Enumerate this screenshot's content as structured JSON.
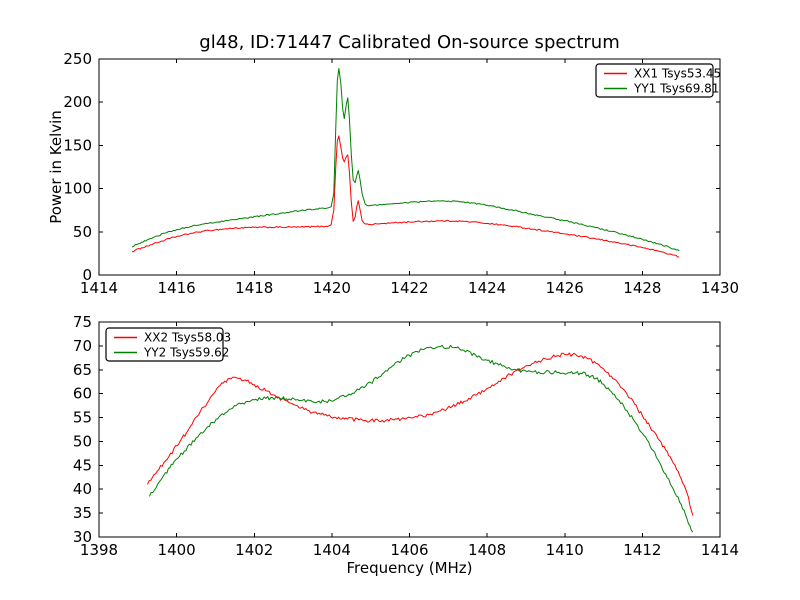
{
  "figure": {
    "background": "#ffffff",
    "axis_color": "#000000"
  },
  "chart_data": [
    {
      "type": "line",
      "title": "gl48, ID:71447 Calibrated On-source spectrum",
      "xlabel": "",
      "ylabel": "Power in Kelvin",
      "xlim": [
        1414,
        1430
      ],
      "ylim": [
        0,
        250
      ],
      "xticks": [
        1414,
        1416,
        1418,
        1420,
        1422,
        1424,
        1426,
        1428,
        1430
      ],
      "yticks": [
        0,
        50,
        100,
        150,
        200,
        250
      ],
      "grid": false,
      "legend_position": "upper-right",
      "series": [
        {
          "name": "XX1 Tsys53.45",
          "color": "#ff0000",
          "noise": 0.8,
          "points": [
            [
              1414.85,
              27
            ],
            [
              1415.1,
              31.5
            ],
            [
              1415.4,
              36
            ],
            [
              1415.7,
              40.5
            ],
            [
              1416.0,
              44.5
            ],
            [
              1416.35,
              48
            ],
            [
              1416.7,
              50.8
            ],
            [
              1417.0,
              52.3
            ],
            [
              1417.4,
              54
            ],
            [
              1417.8,
              54.8
            ],
            [
              1418.2,
              55.2
            ],
            [
              1418.7,
              55.3
            ],
            [
              1419.2,
              55.5
            ],
            [
              1419.6,
              56
            ],
            [
              1419.85,
              56.3
            ],
            [
              1419.98,
              58
            ],
            [
              1420.05,
              75
            ],
            [
              1420.1,
              125
            ],
            [
              1420.14,
              155
            ],
            [
              1420.18,
              161
            ],
            [
              1420.23,
              148
            ],
            [
              1420.28,
              135
            ],
            [
              1420.32,
              131
            ],
            [
              1420.37,
              137
            ],
            [
              1420.41,
              139
            ],
            [
              1420.45,
              120
            ],
            [
              1420.5,
              85
            ],
            [
              1420.55,
              62
            ],
            [
              1420.6,
              67
            ],
            [
              1420.64,
              79
            ],
            [
              1420.68,
              86
            ],
            [
              1420.72,
              77
            ],
            [
              1420.78,
              63
            ],
            [
              1420.86,
              59
            ],
            [
              1420.95,
              58.5
            ],
            [
              1421.2,
              59.2
            ],
            [
              1421.6,
              60.4
            ],
            [
              1422.0,
              61.4
            ],
            [
              1422.4,
              62.1
            ],
            [
              1422.8,
              62.6
            ],
            [
              1423.2,
              62.5
            ],
            [
              1423.6,
              61.5
            ],
            [
              1424.0,
              59.8
            ],
            [
              1424.4,
              57.8
            ],
            [
              1424.8,
              55.6
            ],
            [
              1425.2,
              53
            ],
            [
              1425.6,
              50.4
            ],
            [
              1426.0,
              47.6
            ],
            [
              1426.4,
              44.8
            ],
            [
              1426.8,
              41.8
            ],
            [
              1427.2,
              38.7
            ],
            [
              1427.6,
              35.4
            ],
            [
              1428.0,
              31.8
            ],
            [
              1428.4,
              27.8
            ],
            [
              1428.7,
              24.3
            ],
            [
              1428.95,
              21
            ]
          ]
        },
        {
          "name": "YY1 Tsys69.81",
          "color": "#008000",
          "noise": 0.8,
          "points": [
            [
              1414.85,
              32.5
            ],
            [
              1415.1,
              38
            ],
            [
              1415.4,
              43.5
            ],
            [
              1415.7,
              48.5
            ],
            [
              1416.0,
              52.5
            ],
            [
              1416.35,
              56
            ],
            [
              1416.7,
              59
            ],
            [
              1417.0,
              61
            ],
            [
              1417.4,
              64
            ],
            [
              1417.8,
              66
            ],
            [
              1418.2,
              68.5
            ],
            [
              1418.7,
              71.5
            ],
            [
              1419.2,
              74.5
            ],
            [
              1419.6,
              76.5
            ],
            [
              1419.85,
              77.3
            ],
            [
              1419.98,
              79
            ],
            [
              1420.05,
              95
            ],
            [
              1420.1,
              170
            ],
            [
              1420.14,
              225
            ],
            [
              1420.18,
              239
            ],
            [
              1420.23,
              222
            ],
            [
              1420.28,
              192
            ],
            [
              1420.32,
              181
            ],
            [
              1420.37,
              197
            ],
            [
              1420.41,
              205
            ],
            [
              1420.45,
              182
            ],
            [
              1420.5,
              140
            ],
            [
              1420.55,
              110
            ],
            [
              1420.6,
              107
            ],
            [
              1420.64,
              115
            ],
            [
              1420.68,
              121
            ],
            [
              1420.72,
              112
            ],
            [
              1420.78,
              94
            ],
            [
              1420.86,
              82
            ],
            [
              1420.95,
              80
            ],
            [
              1421.2,
              81
            ],
            [
              1421.6,
              82.8
            ],
            [
              1422.0,
              84
            ],
            [
              1422.4,
              85
            ],
            [
              1422.8,
              85.6
            ],
            [
              1423.2,
              85.2
            ],
            [
              1423.6,
              83.6
            ],
            [
              1424.0,
              80.8
            ],
            [
              1424.4,
              77.3
            ],
            [
              1424.8,
              73.7
            ],
            [
              1425.2,
              70
            ],
            [
              1425.6,
              66.4
            ],
            [
              1426.0,
              62.8
            ],
            [
              1426.4,
              58.9
            ],
            [
              1426.8,
              54.8
            ],
            [
              1427.2,
              50.5
            ],
            [
              1427.6,
              46
            ],
            [
              1428.0,
              41.2
            ],
            [
              1428.4,
              36.2
            ],
            [
              1428.7,
              32
            ],
            [
              1428.95,
              28
            ]
          ]
        }
      ]
    },
    {
      "type": "line",
      "title": "",
      "xlabel": "Frequency (MHz)",
      "ylabel": "",
      "xlim": [
        1398,
        1414
      ],
      "ylim": [
        30,
        75
      ],
      "xticks": [
        1398,
        1400,
        1402,
        1404,
        1406,
        1408,
        1410,
        1412,
        1414
      ],
      "yticks": [
        30,
        35,
        40,
        45,
        50,
        55,
        60,
        65,
        70,
        75
      ],
      "grid": false,
      "legend_position": "upper-left",
      "series": [
        {
          "name": "XX2 Tsys58.03",
          "color": "#ff0000",
          "noise": 0.4,
          "points": [
            [
              1399.25,
              41
            ],
            [
              1399.5,
              43.8
            ],
            [
              1399.8,
              46.8
            ],
            [
              1400.1,
              50.2
            ],
            [
              1400.4,
              53.6
            ],
            [
              1400.7,
              57.2
            ],
            [
              1401.0,
              60.5
            ],
            [
              1401.2,
              62.2
            ],
            [
              1401.4,
              63.1
            ],
            [
              1401.6,
              63.2
            ],
            [
              1401.8,
              62.7
            ],
            [
              1402.0,
              61.9
            ],
            [
              1402.3,
              60.6
            ],
            [
              1402.6,
              59.3
            ],
            [
              1402.9,
              58.1
            ],
            [
              1403.2,
              57
            ],
            [
              1403.5,
              56.1
            ],
            [
              1403.8,
              55.5
            ],
            [
              1404.1,
              55
            ],
            [
              1404.4,
              54.7
            ],
            [
              1404.7,
              54.5
            ],
            [
              1405.0,
              54.4
            ],
            [
              1405.3,
              54.4
            ],
            [
              1405.6,
              54.5
            ],
            [
              1405.9,
              54.7
            ],
            [
              1406.2,
              55.1
            ],
            [
              1406.5,
              55.6
            ],
            [
              1406.8,
              56.4
            ],
            [
              1407.1,
              57.3
            ],
            [
              1407.4,
              58.4
            ],
            [
              1407.7,
              59.7
            ],
            [
              1408.0,
              61.1
            ],
            [
              1408.3,
              62.6
            ],
            [
              1408.6,
              64
            ],
            [
              1408.9,
              65.3
            ],
            [
              1409.2,
              66.4
            ],
            [
              1409.5,
              67.3
            ],
            [
              1409.8,
              67.9
            ],
            [
              1410.0,
              68.2
            ],
            [
              1410.2,
              68.2
            ],
            [
              1410.4,
              67.9
            ],
            [
              1410.6,
              67.3
            ],
            [
              1410.8,
              66.4
            ],
            [
              1411.0,
              65.2
            ],
            [
              1411.2,
              63.7
            ],
            [
              1411.4,
              62
            ],
            [
              1411.6,
              60
            ],
            [
              1411.8,
              57.8
            ],
            [
              1412.0,
              55.4
            ],
            [
              1412.2,
              53
            ],
            [
              1412.4,
              50.6
            ],
            [
              1412.6,
              48.2
            ],
            [
              1412.8,
              45.4
            ],
            [
              1413.0,
              42.2
            ],
            [
              1413.15,
              39.2
            ],
            [
              1413.3,
              34.5
            ]
          ]
        },
        {
          "name": "YY2 Tsys59.62",
          "color": "#008000",
          "noise": 0.4,
          "points": [
            [
              1399.3,
              38.5
            ],
            [
              1399.6,
              42
            ],
            [
              1399.9,
              45.2
            ],
            [
              1400.2,
              48
            ],
            [
              1400.5,
              50.7
            ],
            [
              1400.8,
              53.1
            ],
            [
              1401.1,
              55.2
            ],
            [
              1401.4,
              56.8
            ],
            [
              1401.7,
              58
            ],
            [
              1402.0,
              58.7
            ],
            [
              1402.3,
              59
            ],
            [
              1402.6,
              59.1
            ],
            [
              1402.9,
              58.9
            ],
            [
              1403.2,
              58.6
            ],
            [
              1403.5,
              58.3
            ],
            [
              1403.8,
              58.4
            ],
            [
              1404.1,
              58.8
            ],
            [
              1404.4,
              59.6
            ],
            [
              1404.7,
              60.8
            ],
            [
              1405.0,
              62.3
            ],
            [
              1405.3,
              64.1
            ],
            [
              1405.6,
              66
            ],
            [
              1405.9,
              67.6
            ],
            [
              1406.2,
              68.8
            ],
            [
              1406.5,
              69.6
            ],
            [
              1406.8,
              69.9
            ],
            [
              1407.1,
              69.7
            ],
            [
              1407.4,
              69.1
            ],
            [
              1407.7,
              68.1
            ],
            [
              1408.0,
              67
            ],
            [
              1408.3,
              66
            ],
            [
              1408.6,
              65.2
            ],
            [
              1408.9,
              64.8
            ],
            [
              1409.2,
              64.6
            ],
            [
              1409.5,
              64.5
            ],
            [
              1409.8,
              64.4
            ],
            [
              1410.1,
              64.4
            ],
            [
              1410.4,
              64.3
            ],
            [
              1410.6,
              63.9
            ],
            [
              1410.8,
              63.2
            ],
            [
              1411.0,
              62
            ],
            [
              1411.2,
              60.4
            ],
            [
              1411.4,
              58.6
            ],
            [
              1411.6,
              56.5
            ],
            [
              1411.8,
              54.2
            ],
            [
              1412.0,
              51.7
            ],
            [
              1412.2,
              49
            ],
            [
              1412.4,
              46.2
            ],
            [
              1412.6,
              43.2
            ],
            [
              1412.8,
              40
            ],
            [
              1413.0,
              36.8
            ],
            [
              1413.15,
              33.8
            ],
            [
              1413.3,
              31
            ]
          ]
        }
      ]
    }
  ]
}
